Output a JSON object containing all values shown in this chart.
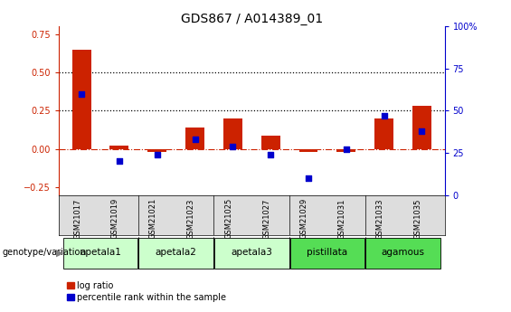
{
  "title": "GDS867 / A014389_01",
  "samples": [
    "GSM21017",
    "GSM21019",
    "GSM21021",
    "GSM21023",
    "GSM21025",
    "GSM21027",
    "GSM21029",
    "GSM21031",
    "GSM21033",
    "GSM21035"
  ],
  "log_ratio": [
    0.65,
    0.02,
    -0.02,
    0.14,
    0.2,
    0.09,
    -0.02,
    -0.02,
    0.2,
    0.28
  ],
  "percentile_pct": [
    60,
    20,
    24,
    33,
    29,
    24,
    10,
    27,
    47,
    38
  ],
  "bar_color": "#cc2200",
  "dot_color": "#0000cc",
  "ylim_left": [
    -0.3,
    0.8
  ],
  "ylim_right": [
    0,
    100
  ],
  "yticks_left": [
    -0.25,
    0.0,
    0.25,
    0.5,
    0.75
  ],
  "yticks_right": [
    0,
    25,
    50,
    75,
    100
  ],
  "hlines": [
    0.25,
    0.5
  ],
  "zero_line": 0.0,
  "groups": [
    {
      "label": "apetala1",
      "start": 0,
      "end": 2,
      "color": "#ccffcc"
    },
    {
      "label": "apetala2",
      "start": 2,
      "end": 4,
      "color": "#ccffcc"
    },
    {
      "label": "apetala3",
      "start": 4,
      "end": 6,
      "color": "#ccffcc"
    },
    {
      "label": "pistillata",
      "start": 6,
      "end": 8,
      "color": "#55dd55"
    },
    {
      "label": "agamous",
      "start": 8,
      "end": 10,
      "color": "#55dd55"
    }
  ],
  "genotype_label": "genotype/variation",
  "legend_items": [
    {
      "label": "log ratio",
      "color": "#cc2200"
    },
    {
      "label": "percentile rank within the sample",
      "color": "#0000cc"
    }
  ],
  "background_color": "#ffffff",
  "title_fontsize": 10,
  "tick_fontsize": 7,
  "sample_tick_fontsize": 6,
  "group_label_fontsize": 7.5,
  "legend_fontsize": 7,
  "genotype_label_fontsize": 7
}
